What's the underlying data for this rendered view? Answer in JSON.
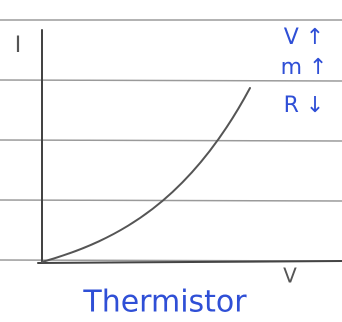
{
  "axes": {
    "y_label": "I",
    "x_label": "V"
  },
  "notes": [
    "V ↑",
    "m ↑",
    "R ↓"
  ],
  "caption": "Thermistor"
}
